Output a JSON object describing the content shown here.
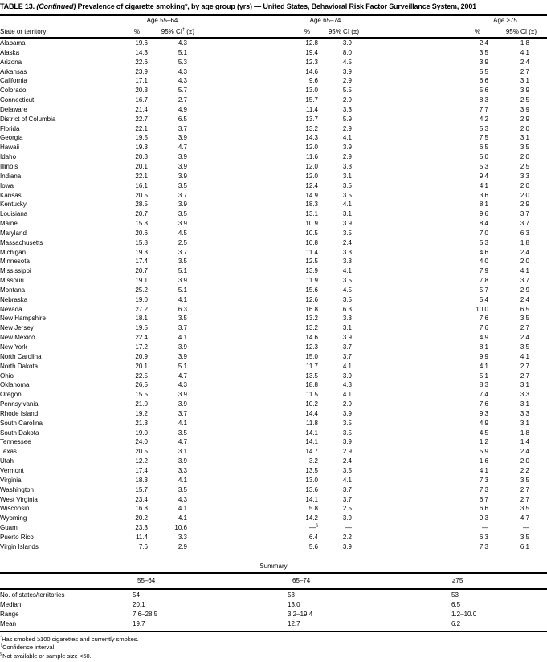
{
  "colors": {
    "text": "#000000",
    "background": "#ffffff",
    "rule": "#000000"
  },
  "title": {
    "part1": "TABLE 13. ",
    "part2": "(Continued)",
    "part3": " Prevalence of cigarette smoking*, by age group (yrs) — United States, Behavioral Risk Factor Surveillance System, 2001"
  },
  "header": {
    "state_col": "State or territory",
    "groups": [
      {
        "label": "Age 55–64",
        "pct": "%",
        "ci_pre": "95% CI",
        "ci_sup": "†",
        "ci_post": " (±)"
      },
      {
        "label": "Age 65–74",
        "pct": "%",
        "ci_pre": "95% CI",
        "ci_sup": "",
        "ci_post": " (±)"
      },
      {
        "label": "Age ≥75",
        "pct": "%",
        "ci_pre": "95% CI",
        "ci_sup": "",
        "ci_post": " (±)"
      }
    ]
  },
  "rows": [
    {
      "state": "Alabama",
      "p1": "19.6",
      "ci1": "4.3",
      "p2": "12.8",
      "ci2": "3.9",
      "p3": "2.4",
      "ci3": "1.8"
    },
    {
      "state": "Alaska",
      "p1": "14.3",
      "ci1": "5.1",
      "p2": "19.4",
      "ci2": "8.0",
      "p3": "3.5",
      "ci3": "4.1"
    },
    {
      "state": "Arizona",
      "p1": "22.6",
      "ci1": "5.3",
      "p2": "12.3",
      "ci2": "4.5",
      "p3": "3.9",
      "ci3": "2.4"
    },
    {
      "state": "Arkansas",
      "p1": "23.9",
      "ci1": "4.3",
      "p2": "14.6",
      "ci2": "3.9",
      "p3": "5.5",
      "ci3": "2.7"
    },
    {
      "state": "California",
      "p1": "17.1",
      "ci1": "4.3",
      "p2": "9.6",
      "ci2": "2.9",
      "p3": "6.6",
      "ci3": "3.1"
    },
    {
      "state": "Colorado",
      "p1": "20.3",
      "ci1": "5.7",
      "p2": "13.0",
      "ci2": "5.5",
      "p3": "5.6",
      "ci3": "3.9"
    },
    {
      "state": "Connecticut",
      "p1": "16.7",
      "ci1": "2.7",
      "p2": "15.7",
      "ci2": "2.9",
      "p3": "8.3",
      "ci3": "2.5"
    },
    {
      "state": "Delaware",
      "p1": "21.4",
      "ci1": "4.9",
      "p2": "11.4",
      "ci2": "3.3",
      "p3": "7.7",
      "ci3": "3.9"
    },
    {
      "state": "District of Columbia",
      "p1": "22.7",
      "ci1": "6.5",
      "p2": "13.7",
      "ci2": "5.9",
      "p3": "4.2",
      "ci3": "2.9"
    },
    {
      "state": "Florida",
      "p1": "22.1",
      "ci1": "3.7",
      "p2": "13.2",
      "ci2": "2.9",
      "p3": "5.3",
      "ci3": "2.0"
    },
    {
      "state": "Georgia",
      "p1": "19.5",
      "ci1": "3.9",
      "p2": "14.3",
      "ci2": "4.1",
      "p3": "7.5",
      "ci3": "3.1"
    },
    {
      "state": "Hawaii",
      "p1": "19.3",
      "ci1": "4.7",
      "p2": "12.0",
      "ci2": "3.9",
      "p3": "6.5",
      "ci3": "3.5"
    },
    {
      "state": "Idaho",
      "p1": "20.3",
      "ci1": "3.9",
      "p2": "11.6",
      "ci2": "2.9",
      "p3": "5.0",
      "ci3": "2.0"
    },
    {
      "state": "Illinois",
      "p1": "20.1",
      "ci1": "3.9",
      "p2": "12.0",
      "ci2": "3.3",
      "p3": "5.3",
      "ci3": "2.5"
    },
    {
      "state": "Indiana",
      "p1": "22.1",
      "ci1": "3.9",
      "p2": "12.0",
      "ci2": "3.1",
      "p3": "9.4",
      "ci3": "3.3"
    },
    {
      "state": "Iowa",
      "p1": "16.1",
      "ci1": "3.5",
      "p2": "12.4",
      "ci2": "3.5",
      "p3": "4.1",
      "ci3": "2.0"
    },
    {
      "state": "Kansas",
      "p1": "20.5",
      "ci1": "3.7",
      "p2": "14.9",
      "ci2": "3.5",
      "p3": "3.6",
      "ci3": "2.0"
    },
    {
      "state": "Kentucky",
      "p1": "28.5",
      "ci1": "3.9",
      "p2": "18.3",
      "ci2": "4.1",
      "p3": "8.1",
      "ci3": "2.9"
    },
    {
      "state": "Louisiana",
      "p1": "20.7",
      "ci1": "3.5",
      "p2": "13.1",
      "ci2": "3.1",
      "p3": "9.6",
      "ci3": "3.7"
    },
    {
      "state": "Maine",
      "p1": "15.3",
      "ci1": "3.9",
      "p2": "10.9",
      "ci2": "3.9",
      "p3": "8.4",
      "ci3": "3.7"
    },
    {
      "state": "Maryland",
      "p1": "20.6",
      "ci1": "4.5",
      "p2": "10.5",
      "ci2": "3.5",
      "p3": "7.0",
      "ci3": "6.3"
    },
    {
      "state": "Massachusetts",
      "p1": "15.8",
      "ci1": "2.5",
      "p2": "10.8",
      "ci2": "2.4",
      "p3": "5.3",
      "ci3": "1.8"
    },
    {
      "state": "Michigan",
      "p1": "19.3",
      "ci1": "3.7",
      "p2": "11.4",
      "ci2": "3.3",
      "p3": "4.6",
      "ci3": "2.4"
    },
    {
      "state": "Minnesota",
      "p1": "17.4",
      "ci1": "3.5",
      "p2": "12.5",
      "ci2": "3.3",
      "p3": "4.0",
      "ci3": "2.0"
    },
    {
      "state": "Mississippi",
      "p1": "20.7",
      "ci1": "5.1",
      "p2": "13.9",
      "ci2": "4.1",
      "p3": "7.9",
      "ci3": "4.1"
    },
    {
      "state": "Missouri",
      "p1": "19.1",
      "ci1": "3.9",
      "p2": "11.9",
      "ci2": "3.5",
      "p3": "7.8",
      "ci3": "3.7"
    },
    {
      "state": "Montana",
      "p1": "25.2",
      "ci1": "5.1",
      "p2": "15.6",
      "ci2": "4.5",
      "p3": "5.7",
      "ci3": "2.9"
    },
    {
      "state": "Nebraska",
      "p1": "19.0",
      "ci1": "4.1",
      "p2": "12.6",
      "ci2": "3.5",
      "p3": "5.4",
      "ci3": "2.4"
    },
    {
      "state": "Nevada",
      "p1": "27.2",
      "ci1": "6.3",
      "p2": "16.8",
      "ci2": "6.3",
      "p3": "10.0",
      "ci3": "6.5"
    },
    {
      "state": "New Hampshire",
      "p1": "18.1",
      "ci1": "3.5",
      "p2": "13.2",
      "ci2": "3.3",
      "p3": "7.6",
      "ci3": "3.5"
    },
    {
      "state": "New Jersey",
      "p1": "19.5",
      "ci1": "3.7",
      "p2": "13.2",
      "ci2": "3.1",
      "p3": "7.6",
      "ci3": "2.7"
    },
    {
      "state": "New Mexico",
      "p1": "22.4",
      "ci1": "4.1",
      "p2": "14.6",
      "ci2": "3.9",
      "p3": "4.9",
      "ci3": "2.4"
    },
    {
      "state": "New York",
      "p1": "17.2",
      "ci1": "3.9",
      "p2": "12.3",
      "ci2": "3.7",
      "p3": "8.1",
      "ci3": "3.5"
    },
    {
      "state": "North Carolina",
      "p1": "20.9",
      "ci1": "3.9",
      "p2": "15.0",
      "ci2": "3.7",
      "p3": "9.9",
      "ci3": "4.1"
    },
    {
      "state": "North Dakota",
      "p1": "20.1",
      "ci1": "5.1",
      "p2": "11.7",
      "ci2": "4.1",
      "p3": "4.1",
      "ci3": "2.7"
    },
    {
      "state": "Ohio",
      "p1": "22.5",
      "ci1": "4.7",
      "p2": "13.5",
      "ci2": "3.9",
      "p3": "5.1",
      "ci3": "2.7"
    },
    {
      "state": "Oklahoma",
      "p1": "26.5",
      "ci1": "4.3",
      "p2": "18.8",
      "ci2": "4.3",
      "p3": "8.3",
      "ci3": "3.1"
    },
    {
      "state": "Oregon",
      "p1": "15.5",
      "ci1": "3.9",
      "p2": "11.5",
      "ci2": "4.1",
      "p3": "7.4",
      "ci3": "3.3"
    },
    {
      "state": "Pennsylvania",
      "p1": "21.0",
      "ci1": "3.9",
      "p2": "10.2",
      "ci2": "2.9",
      "p3": "7.6",
      "ci3": "3.1"
    },
    {
      "state": "Rhode Island",
      "p1": "19.2",
      "ci1": "3.7",
      "p2": "14.4",
      "ci2": "3.9",
      "p3": "9.3",
      "ci3": "3.3"
    },
    {
      "state": "South Carolina",
      "p1": "21.3",
      "ci1": "4.1",
      "p2": "11.8",
      "ci2": "3.5",
      "p3": "4.9",
      "ci3": "3.1"
    },
    {
      "state": "South Dakota",
      "p1": "19.0",
      "ci1": "3.5",
      "p2": "14.1",
      "ci2": "3.5",
      "p3": "4.5",
      "ci3": "1.8"
    },
    {
      "state": "Tennessee",
      "p1": "24.0",
      "ci1": "4.7",
      "p2": "14.1",
      "ci2": "3.9",
      "p3": "1.2",
      "ci3": "1.4"
    },
    {
      "state": "Texas",
      "p1": "20.5",
      "ci1": "3.1",
      "p2": "14.7",
      "ci2": "2.9",
      "p3": "5.9",
      "ci3": "2.4"
    },
    {
      "state": "Utah",
      "p1": "12.2",
      "ci1": "3.9",
      "p2": "3.2",
      "ci2": "2.4",
      "p3": "1.6",
      "ci3": "2.0"
    },
    {
      "state": "Vermont",
      "p1": "17.4",
      "ci1": "3.3",
      "p2": "13.5",
      "ci2": "3.5",
      "p3": "4.1",
      "ci3": "2.2"
    },
    {
      "state": "Virginia",
      "p1": "18.3",
      "ci1": "4.1",
      "p2": "13.0",
      "ci2": "4.1",
      "p3": "7.3",
      "ci3": "3.5"
    },
    {
      "state": "Washington",
      "p1": "15.7",
      "ci1": "3.5",
      "p2": "13.6",
      "ci2": "3.7",
      "p3": "7.3",
      "ci3": "2.7"
    },
    {
      "state": "West Virginia",
      "p1": "23.4",
      "ci1": "4.3",
      "p2": "14.1",
      "ci2": "3.7",
      "p3": "6.7",
      "ci3": "2.7"
    },
    {
      "state": "Wisconsin",
      "p1": "16.8",
      "ci1": "4.1",
      "p2": "5.8",
      "ci2": "2.5",
      "p3": "6.6",
      "ci3": "3.5"
    },
    {
      "state": "Wyoming",
      "p1": "20.2",
      "ci1": "4.1",
      "p2": "14.2",
      "ci2": "3.9",
      "p3": "9.3",
      "ci3": "4.7"
    },
    {
      "state": "Guam",
      "p1": "23.3",
      "ci1": "10.6",
      "p2": "—",
      "p2_sup": "§",
      "ci2": "—",
      "p3": "—",
      "ci3": "—"
    },
    {
      "state": "Puerto Rico",
      "p1": "11.4",
      "ci1": "3.3",
      "p2": "6.4",
      "ci2": "2.2",
      "p3": "6.3",
      "ci3": "3.5"
    },
    {
      "state": "Virgin Islands",
      "p1": "7.6",
      "ci1": "2.9",
      "p2": "5.6",
      "ci2": "3.9",
      "p3": "7.3",
      "ci3": "6.1"
    }
  ],
  "summary": {
    "title": "Summary",
    "columns": [
      "55–64",
      "65–74",
      "≥75"
    ],
    "rows": [
      {
        "label": "No. of states/territories",
        "v1": "54",
        "v2": "53",
        "v3": "53"
      },
      {
        "label": "Median",
        "v1": "20.1",
        "v2": "13.0",
        "v3": "6.5"
      },
      {
        "label": "Range",
        "v1": "7.6–28.5",
        "v2": "3.2–19.4",
        "v3": "1.2–10.0"
      },
      {
        "label": "Mean",
        "v1": "19.7",
        "v2": "12.7",
        "v3": "6.2"
      }
    ]
  },
  "footnotes": [
    {
      "symbol": "*",
      "text": "Has smoked ≥100 cigarettes and currently smokes."
    },
    {
      "symbol": "†",
      "text": "Confidence interval."
    },
    {
      "symbol": "§",
      "text": "Not available or sample size <50."
    }
  ]
}
